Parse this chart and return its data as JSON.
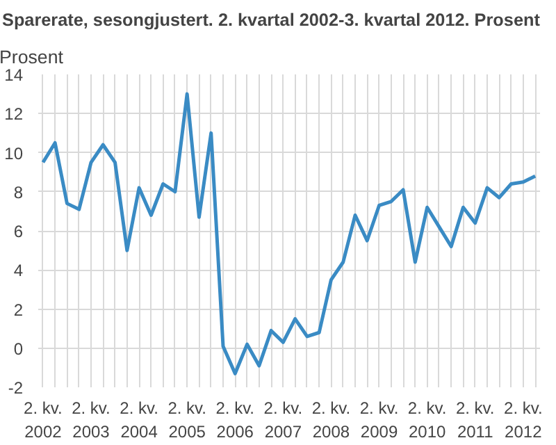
{
  "chart_data": {
    "type": "line",
    "title": "Sparerate, sesongjustert. 2. kvartal 2002-3. kvartal 2012. Prosent",
    "ylabel": "Prosent",
    "categories": [
      "2. kv.\n2002",
      null,
      null,
      null,
      "2. kv.\n2003",
      null,
      null,
      null,
      "2. kv.\n2004",
      null,
      null,
      null,
      "2. kv.\n2005",
      null,
      null,
      null,
      "2. kv.\n2006",
      null,
      null,
      null,
      "2. kv.\n2007",
      null,
      null,
      null,
      "2. kv.\n2008",
      null,
      null,
      null,
      "2. kv.\n2009",
      null,
      null,
      null,
      "2. kv.\n2010",
      null,
      null,
      null,
      "2. kv.\n2011",
      null,
      null,
      null,
      "2. kv.\n2012",
      null
    ],
    "series": [
      {
        "color": "#3a8bc4",
        "values": [
          9.5,
          10.5,
          7.4,
          7.1,
          9.5,
          10.4,
          9.5,
          5.0,
          8.2,
          6.8,
          8.4,
          8.0,
          13.0,
          6.7,
          11.0,
          0.1,
          -1.3,
          0.2,
          -0.9,
          0.9,
          0.3,
          1.5,
          0.6,
          0.8,
          3.5,
          4.4,
          6.8,
          5.5,
          7.3,
          7.5,
          8.1,
          4.4,
          7.2,
          6.2,
          5.2,
          7.2,
          6.4,
          8.2,
          7.7,
          8.4,
          8.5,
          8.8
        ]
      }
    ],
    "ylim": [
      -2,
      14
    ],
    "yticks": [
      -2,
      0,
      2,
      4,
      6,
      8,
      10,
      12,
      14
    ],
    "grid": true,
    "line_style": "solid",
    "marker": "none"
  }
}
